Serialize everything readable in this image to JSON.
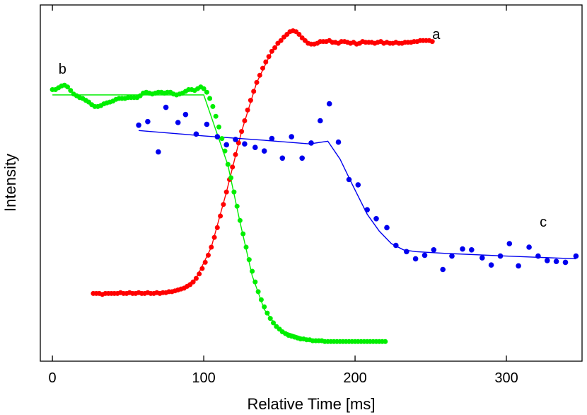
{
  "chart_data": {
    "type": "scatter",
    "title": "",
    "xlabel": "Relative Time [ms]",
    "ylabel": "Intensity",
    "xlim": [
      -8,
      350
    ],
    "ylim": [
      -2,
      38
    ],
    "x_ticks": [
      0,
      100,
      200,
      300
    ],
    "x_tick_labels": [
      "0",
      "100",
      "200",
      "300"
    ],
    "y_ticks_labeled": false,
    "grid": false,
    "colors": {
      "a": "#ff0000",
      "b": "#00ee00",
      "c": "#0000ee",
      "axis": "#000000"
    },
    "series": [
      {
        "name": "a",
        "color": "#ff0000",
        "label_at": [
          251,
          34.2
        ],
        "points": [
          [
            27,
            5.6
          ],
          [
            29,
            5.6
          ],
          [
            31,
            5.6
          ],
          [
            33,
            5.5
          ],
          [
            35,
            5.6
          ],
          [
            37,
            5.6
          ],
          [
            39,
            5.6
          ],
          [
            41,
            5.6
          ],
          [
            43,
            5.6
          ],
          [
            45,
            5.7
          ],
          [
            47,
            5.6
          ],
          [
            49,
            5.6
          ],
          [
            51,
            5.7
          ],
          [
            53,
            5.6
          ],
          [
            55,
            5.6
          ],
          [
            57,
            5.7
          ],
          [
            59,
            5.6
          ],
          [
            61,
            5.6
          ],
          [
            63,
            5.7
          ],
          [
            65,
            5.6
          ],
          [
            67,
            5.6
          ],
          [
            69,
            5.7
          ],
          [
            71,
            5.6
          ],
          [
            73,
            5.7
          ],
          [
            75,
            5.7
          ],
          [
            77,
            5.8
          ],
          [
            79,
            5.8
          ],
          [
            81,
            5.9
          ],
          [
            83,
            6.0
          ],
          [
            85,
            6.1
          ],
          [
            87,
            6.2
          ],
          [
            89,
            6.4
          ],
          [
            91,
            6.6
          ],
          [
            93,
            6.9
          ],
          [
            95,
            7.3
          ],
          [
            97,
            7.8
          ],
          [
            99,
            8.4
          ],
          [
            101,
            9.1
          ],
          [
            103,
            9.9
          ],
          [
            105,
            10.8
          ],
          [
            107,
            11.9
          ],
          [
            109,
            13.0
          ],
          [
            111,
            14.3
          ],
          [
            113,
            15.6
          ],
          [
            115,
            17.0
          ],
          [
            117,
            18.4
          ],
          [
            119,
            19.8
          ],
          [
            121,
            21.2
          ],
          [
            123,
            22.5
          ],
          [
            125,
            23.8
          ],
          [
            127,
            25.0
          ],
          [
            129,
            26.2
          ],
          [
            131,
            27.3
          ],
          [
            133,
            28.3
          ],
          [
            135,
            29.3
          ],
          [
            137,
            30.1
          ],
          [
            139,
            30.9
          ],
          [
            141,
            31.6
          ],
          [
            143,
            32.2
          ],
          [
            145,
            32.8
          ],
          [
            147,
            33.2
          ],
          [
            149,
            33.7
          ],
          [
            151,
            34.0
          ],
          [
            153,
            34.4
          ],
          [
            155,
            34.7
          ],
          [
            157,
            35.0
          ],
          [
            159,
            35.1
          ],
          [
            161,
            35.0
          ],
          [
            163,
            34.7
          ],
          [
            165,
            34.3
          ],
          [
            167,
            34.0
          ],
          [
            169,
            33.7
          ],
          [
            171,
            33.6
          ],
          [
            173,
            33.6
          ],
          [
            175,
            33.7
          ],
          [
            177,
            33.9
          ],
          [
            179,
            33.9
          ],
          [
            181,
            33.9
          ],
          [
            183,
            34.0
          ],
          [
            185,
            33.8
          ],
          [
            187,
            33.8
          ],
          [
            189,
            33.7
          ],
          [
            191,
            33.9
          ],
          [
            193,
            33.9
          ],
          [
            195,
            33.8
          ],
          [
            197,
            33.7
          ],
          [
            199,
            33.8
          ],
          [
            201,
            33.6
          ],
          [
            203,
            33.7
          ],
          [
            205,
            33.9
          ],
          [
            207,
            33.8
          ],
          [
            209,
            33.8
          ],
          [
            211,
            33.8
          ],
          [
            213,
            33.7
          ],
          [
            215,
            33.8
          ],
          [
            217,
            33.9
          ],
          [
            219,
            33.7
          ],
          [
            221,
            33.8
          ],
          [
            223,
            33.7
          ],
          [
            225,
            33.7
          ],
          [
            227,
            33.8
          ],
          [
            229,
            33.7
          ],
          [
            231,
            33.7
          ],
          [
            233,
            33.8
          ],
          [
            235,
            33.8
          ],
          [
            237,
            33.8
          ],
          [
            239,
            33.9
          ],
          [
            241,
            33.9
          ],
          [
            243,
            34.0
          ],
          [
            245,
            34.0
          ],
          [
            247,
            34.0
          ],
          [
            249,
            34.0
          ],
          [
            251,
            33.9
          ]
        ]
      },
      {
        "name": "b",
        "color": "#00ee00",
        "label_at": [
          4,
          30.3
        ],
        "points": [
          [
            0,
            28.5
          ],
          [
            2,
            28.5
          ],
          [
            4,
            28.7
          ],
          [
            6,
            28.9
          ],
          [
            8,
            29.0
          ],
          [
            10,
            28.8
          ],
          [
            12,
            28.4
          ],
          [
            14,
            28.0
          ],
          [
            16,
            27.8
          ],
          [
            18,
            27.6
          ],
          [
            20,
            27.5
          ],
          [
            22,
            27.3
          ],
          [
            24,
            27.1
          ],
          [
            26,
            26.8
          ],
          [
            28,
            26.6
          ],
          [
            30,
            26.6
          ],
          [
            32,
            26.7
          ],
          [
            34,
            26.9
          ],
          [
            36,
            27.0
          ],
          [
            38,
            27.1
          ],
          [
            40,
            27.2
          ],
          [
            42,
            27.4
          ],
          [
            44,
            27.5
          ],
          [
            46,
            27.5
          ],
          [
            48,
            27.5
          ],
          [
            50,
            27.6
          ],
          [
            52,
            27.6
          ],
          [
            54,
            27.6
          ],
          [
            56,
            27.6
          ],
          [
            58,
            27.8
          ],
          [
            60,
            28.1
          ],
          [
            62,
            28.2
          ],
          [
            64,
            28.1
          ],
          [
            66,
            28.0
          ],
          [
            68,
            28.1
          ],
          [
            70,
            28.2
          ],
          [
            72,
            28.2
          ],
          [
            74,
            28.1
          ],
          [
            76,
            28.2
          ],
          [
            78,
            28.2
          ],
          [
            80,
            28.0
          ],
          [
            82,
            27.9
          ],
          [
            84,
            28.0
          ],
          [
            86,
            28.1
          ],
          [
            88,
            28.3
          ],
          [
            90,
            28.5
          ],
          [
            92,
            28.5
          ],
          [
            94,
            28.4
          ],
          [
            96,
            28.6
          ],
          [
            98,
            28.8
          ],
          [
            100,
            28.6
          ],
          [
            102,
            28.2
          ],
          [
            104,
            27.5
          ],
          [
            106,
            26.6
          ],
          [
            108,
            25.5
          ],
          [
            110,
            24.3
          ],
          [
            112,
            23.0
          ],
          [
            114,
            21.6
          ],
          [
            116,
            20.1
          ],
          [
            118,
            18.6
          ],
          [
            120,
            17.0
          ],
          [
            122,
            15.4
          ],
          [
            124,
            13.8
          ],
          [
            126,
            12.3
          ],
          [
            128,
            10.8
          ],
          [
            130,
            9.4
          ],
          [
            132,
            8.1
          ],
          [
            134,
            6.9
          ],
          [
            136,
            5.8
          ],
          [
            138,
            4.9
          ],
          [
            140,
            4.1
          ],
          [
            142,
            3.4
          ],
          [
            144,
            2.8
          ],
          [
            146,
            2.3
          ],
          [
            148,
            1.9
          ],
          [
            150,
            1.6
          ],
          [
            152,
            1.3
          ],
          [
            154,
            1.1
          ],
          [
            156,
            0.9
          ],
          [
            158,
            0.8
          ],
          [
            160,
            0.7
          ],
          [
            162,
            0.6
          ],
          [
            164,
            0.5
          ],
          [
            166,
            0.5
          ],
          [
            168,
            0.4
          ],
          [
            170,
            0.4
          ],
          [
            172,
            0.3
          ],
          [
            174,
            0.3
          ],
          [
            176,
            0.3
          ],
          [
            178,
            0.3
          ],
          [
            180,
            0.2
          ],
          [
            182,
            0.2
          ],
          [
            184,
            0.2
          ],
          [
            186,
            0.2
          ],
          [
            188,
            0.2
          ],
          [
            190,
            0.2
          ],
          [
            192,
            0.2
          ],
          [
            194,
            0.2
          ],
          [
            196,
            0.2
          ],
          [
            198,
            0.2
          ],
          [
            200,
            0.2
          ],
          [
            202,
            0.2
          ],
          [
            204,
            0.2
          ],
          [
            206,
            0.2
          ],
          [
            208,
            0.2
          ],
          [
            210,
            0.2
          ],
          [
            212,
            0.2
          ],
          [
            214,
            0.2
          ],
          [
            216,
            0.2
          ],
          [
            218,
            0.2
          ],
          [
            220,
            0.2
          ]
        ],
        "fit": [
          [
            0,
            27.9
          ],
          [
            100,
            27.9
          ],
          [
            116,
            20.0
          ],
          [
            124,
            13.6
          ],
          [
            132,
            7.6
          ],
          [
            140,
            3.8
          ],
          [
            150,
            1.5
          ],
          [
            170,
            0.4
          ],
          [
            220,
            0.2
          ]
        ]
      },
      {
        "name": "c",
        "color": "#0000ee",
        "label_at": [
          322,
          13.1
        ],
        "points": [
          [
            57,
            24.5
          ],
          [
            63,
            24.9
          ],
          [
            70,
            21.5
          ],
          [
            75,
            26.5
          ],
          [
            83,
            24.8
          ],
          [
            88,
            25.7
          ],
          [
            95,
            23.5
          ],
          [
            102,
            24.6
          ],
          [
            109,
            23.2
          ],
          [
            115,
            22.3
          ],
          [
            121,
            22.9
          ],
          [
            127,
            22.4
          ],
          [
            134,
            22.0
          ],
          [
            140,
            21.6
          ],
          [
            145,
            23.0
          ],
          [
            152,
            20.8
          ],
          [
            158,
            23.2
          ],
          [
            165,
            20.8
          ],
          [
            171,
            22.5
          ],
          [
            177,
            25.0
          ],
          [
            183,
            26.9
          ],
          [
            189,
            22.6
          ],
          [
            196,
            18.4
          ],
          [
            202,
            17.8
          ],
          [
            208,
            15.0
          ],
          [
            214,
            14.0
          ],
          [
            221,
            13.0
          ],
          [
            227,
            11.0
          ],
          [
            234,
            10.3
          ],
          [
            240,
            9.5
          ],
          [
            246,
            9.9
          ],
          [
            252,
            10.5
          ],
          [
            258,
            8.3
          ],
          [
            264,
            9.8
          ],
          [
            271,
            10.6
          ],
          [
            277,
            10.5
          ],
          [
            284,
            9.6
          ],
          [
            290,
            8.8
          ],
          [
            296,
            9.8
          ],
          [
            302,
            11.2
          ],
          [
            308,
            8.7
          ],
          [
            315,
            10.8
          ],
          [
            321,
            9.8
          ],
          [
            327,
            9.3
          ],
          [
            333,
            9.2
          ],
          [
            339,
            9.1
          ],
          [
            346,
            9.8
          ]
        ],
        "fit": [
          [
            57,
            23.9
          ],
          [
            100,
            23.3
          ],
          [
            140,
            22.8
          ],
          [
            170,
            22.4
          ],
          [
            182,
            22.7
          ],
          [
            190,
            20.7
          ],
          [
            198,
            17.9
          ],
          [
            208,
            14.5
          ],
          [
            216,
            12.6
          ],
          [
            224,
            11.2
          ],
          [
            232,
            10.5
          ],
          [
            240,
            10.3
          ],
          [
            260,
            10.1
          ],
          [
            300,
            9.8
          ],
          [
            346,
            9.5
          ]
        ]
      }
    ],
    "fit_line_a": [
      [
        27,
        5.6
      ],
      [
        75,
        5.7
      ],
      [
        85,
        6.1
      ],
      [
        95,
        7.3
      ],
      [
        105,
        10.8
      ],
      [
        115,
        17.0
      ],
      [
        125,
        23.8
      ],
      [
        135,
        29.3
      ],
      [
        145,
        32.8
      ],
      [
        155,
        34.7
      ],
      [
        160,
        35.0
      ],
      [
        170,
        33.7
      ],
      [
        180,
        33.8
      ],
      [
        251,
        33.9
      ]
    ]
  }
}
